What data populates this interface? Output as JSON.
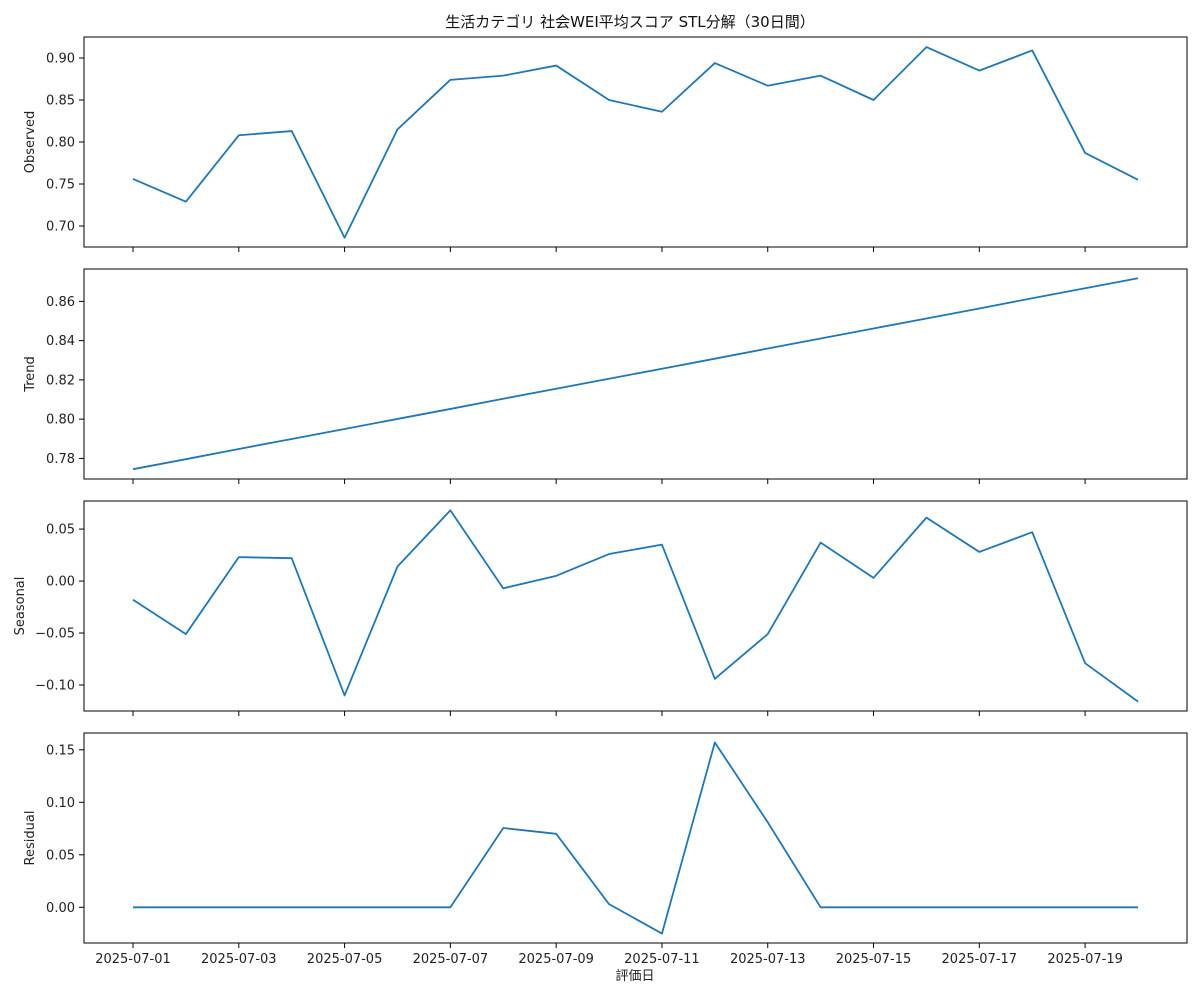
{
  "chart_data": {
    "type": "line",
    "title": "生活カテゴリ 社会WEI平均スコア STL分解（30日間）",
    "xlabel": "評価日",
    "line_color": "#1f77b4",
    "x": [
      "2025-07-01",
      "2025-07-02",
      "2025-07-03",
      "2025-07-04",
      "2025-07-05",
      "2025-07-06",
      "2025-07-07",
      "2025-07-08",
      "2025-07-09",
      "2025-07-10",
      "2025-07-11",
      "2025-07-12",
      "2025-07-13",
      "2025-07-14",
      "2025-07-15",
      "2025-07-16",
      "2025-07-17",
      "2025-07-18",
      "2025-07-19",
      "2025-07-20"
    ],
    "xticks": [
      "2025-07-01",
      "2025-07-03",
      "2025-07-05",
      "2025-07-07",
      "2025-07-09",
      "2025-07-11",
      "2025-07-13",
      "2025-07-15",
      "2025-07-17",
      "2025-07-19"
    ],
    "panels": [
      {
        "name": "Observed",
        "ylabel": "Observed",
        "ylim": [
          0.675,
          0.925
        ],
        "yticks": [
          0.7,
          0.75,
          0.8,
          0.85,
          0.9
        ],
        "ytick_labels": [
          "0.70",
          "0.75",
          "0.80",
          "0.85",
          "0.90"
        ],
        "values": [
          0.756,
          0.729,
          0.808,
          0.813,
          0.686,
          0.815,
          0.874,
          0.879,
          0.891,
          0.85,
          0.836,
          0.894,
          0.867,
          0.879,
          0.85,
          0.913,
          0.885,
          0.909,
          0.787,
          0.755
        ]
      },
      {
        "name": "Trend",
        "ylabel": "Trend",
        "ylim": [
          0.7695,
          0.8765
        ],
        "yticks": [
          0.78,
          0.8,
          0.82,
          0.84,
          0.86
        ],
        "ytick_labels": [
          "0.78",
          "0.80",
          "0.82",
          "0.84",
          "0.86"
        ],
        "values": [
          0.7745,
          0.7796,
          0.7848,
          0.7899,
          0.795,
          0.8001,
          0.8052,
          0.8104,
          0.8155,
          0.8206,
          0.8257,
          0.8308,
          0.836,
          0.8411,
          0.8462,
          0.8513,
          0.8564,
          0.8616,
          0.8667,
          0.8718
        ]
      },
      {
        "name": "Seasonal",
        "ylabel": "Seasonal",
        "ylim": [
          -0.125,
          0.077
        ],
        "yticks": [
          -0.1,
          -0.05,
          0.0,
          0.05
        ],
        "ytick_labels": [
          "−0.10",
          "−0.05",
          "0.00",
          "0.05"
        ],
        "values": [
          -0.018,
          -0.051,
          0.023,
          0.022,
          -0.11,
          0.014,
          0.068,
          -0.007,
          0.005,
          0.026,
          0.035,
          -0.094,
          -0.051,
          0.037,
          0.003,
          0.061,
          0.028,
          0.047,
          -0.079,
          -0.116
        ]
      },
      {
        "name": "Residual",
        "ylabel": "Residual",
        "ylim": [
          -0.034,
          0.166
        ],
        "yticks": [
          0.0,
          0.05,
          0.1,
          0.15
        ],
        "ytick_labels": [
          "0.00",
          "0.05",
          "0.10",
          "0.15"
        ],
        "values": [
          0.0,
          0.0,
          0.0,
          0.0,
          0.0,
          0.0,
          0.0,
          0.0755,
          0.07,
          0.003,
          -0.025,
          0.157,
          0.081,
          0.0,
          0.0,
          0.0,
          0.0,
          0.0,
          0.0,
          0.0
        ]
      }
    ]
  }
}
